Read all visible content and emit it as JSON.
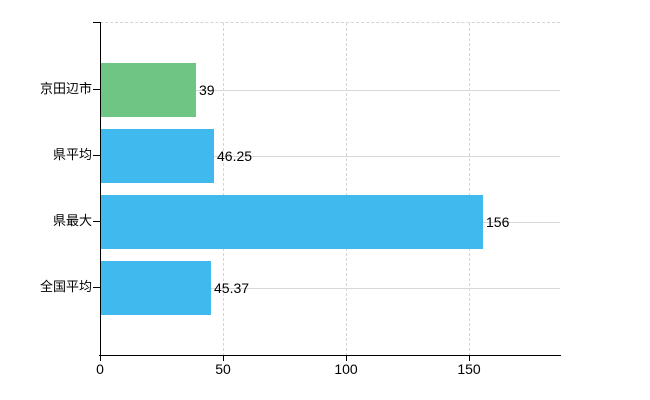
{
  "chart_data": {
    "type": "bar",
    "orientation": "horizontal",
    "title": "",
    "xlabel": "",
    "ylabel": "",
    "legend": "none",
    "categories": [
      "京田辺市",
      "県平均",
      "県最大",
      "全国平均"
    ],
    "values": [
      39,
      46.25,
      156,
      45.37
    ],
    "value_labels": [
      "39",
      "46.25",
      "156",
      "45.37"
    ],
    "bar_colors": [
      "#6ec584",
      "#3fb9ee",
      "#3fb9ee",
      "#3fb9ee"
    ],
    "x_axis": {
      "range": [
        0,
        187.2
      ],
      "ticks": [
        0,
        50,
        100,
        150
      ],
      "tick_labels": [
        "0",
        "50",
        "100",
        "150"
      ]
    },
    "grid": {
      "vertical_style": "dashed",
      "horizontal_style": "solid",
      "top_border_style": "dashed"
    }
  },
  "colors": {
    "highlight_bar": "#6ec584",
    "default_bar": "#3fb9ee",
    "grid_line": "#d6d6d6",
    "axis_line": "#000000",
    "text": "#000000",
    "background": "#ffffff"
  }
}
